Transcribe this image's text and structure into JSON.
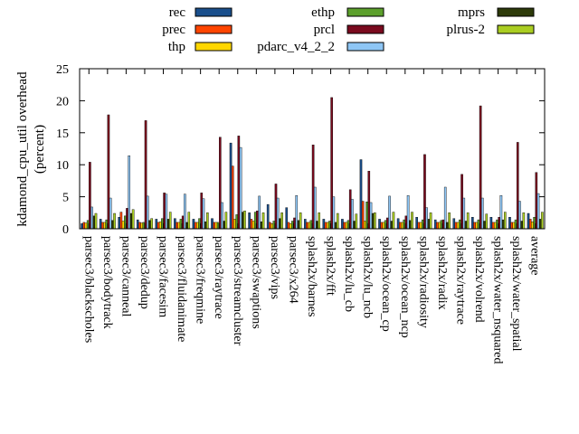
{
  "chart_data": {
    "type": "bar",
    "ylabel": "kdamond_cpu_util overhead",
    "ylabel_unit": "(percent)",
    "ylim": [
      0,
      25
    ],
    "yticks": [
      0,
      5,
      10,
      15,
      20,
      25
    ],
    "categories": [
      "parsec3/blackscholes",
      "parsec3/bodytrack",
      "parsec3/canneal",
      "parsec3/dedup",
      "parsec3/facesim",
      "parsec3/fluidanimate",
      "parsec3/freqmine",
      "parsec3/raytrace",
      "parsec3/streamcluster",
      "parsec3/swaptions",
      "parsec3/vips",
      "parsec3/x264",
      "splash2x/barnes",
      "splash2x/fft",
      "splash2x/lu_cb",
      "splash2x/lu_ncb",
      "splash2x/ocean_cp",
      "splash2x/ocean_ncp",
      "splash2x/radiosity",
      "splash2x/radix",
      "splash2x/raytrace",
      "splash2x/volrend",
      "splash2x/water_nsquared",
      "splash2x/water_spatial",
      "average"
    ],
    "series": [
      {
        "name": "rec",
        "color": "#1a4f8c",
        "values": [
          0.8,
          1.5,
          1.8,
          1.4,
          1.5,
          1.6,
          1.5,
          1.6,
          13.4,
          2.5,
          3.8,
          3.3,
          1.5,
          1.5,
          1.5,
          10.8,
          1.5,
          1.6,
          1.8,
          1.4,
          1.6,
          1.8,
          1.8,
          1.8,
          2.4
        ]
      },
      {
        "name": "prec",
        "color": "#ff4500",
        "values": [
          1.0,
          1.0,
          2.6,
          1.0,
          1.0,
          1.0,
          1.0,
          1.0,
          9.8,
          1.5,
          1.0,
          1.0,
          1.0,
          1.0,
          1.0,
          4.3,
          1.0,
          1.0,
          1.0,
          1.0,
          1.0,
          1.0,
          1.0,
          1.0,
          1.5
        ]
      },
      {
        "name": "thp",
        "color": "#ffd700",
        "values": [
          0.9,
          1.0,
          1.2,
          0.9,
          1.1,
          1.0,
          1.0,
          1.0,
          1.5,
          1.2,
          0.8,
          0.8,
          1.0,
          1.0,
          1.0,
          1.2,
          1.0,
          1.0,
          1.0,
          1.0,
          1.0,
          1.0,
          1.0,
          1.0,
          1.1
        ]
      },
      {
        "name": "ethp",
        "color": "#5ca02c",
        "values": [
          1.3,
          1.4,
          2.0,
          1.0,
          1.6,
          1.5,
          1.6,
          1.0,
          2.2,
          2.6,
          1.2,
          1.2,
          1.3,
          1.2,
          1.3,
          4.2,
          1.3,
          1.4,
          1.4,
          1.3,
          1.4,
          1.4,
          1.4,
          1.4,
          1.8
        ]
      },
      {
        "name": "prcl",
        "color": "#7a0a1e",
        "values": [
          10.4,
          17.8,
          3.2,
          16.9,
          5.6,
          2.0,
          5.6,
          14.3,
          14.5,
          2.8,
          7.0,
          1.7,
          13.1,
          20.5,
          6.1,
          9.0,
          1.7,
          2.0,
          11.6,
          1.4,
          8.5,
          19.2,
          1.8,
          13.5,
          8.8
        ]
      },
      {
        "name": "pdarc_v4_2_2",
        "color": "#8ec6f5",
        "values": [
          3.4,
          4.8,
          11.4,
          5.1,
          5.4,
          5.4,
          4.7,
          4.1,
          12.7,
          5.1,
          4.8,
          5.2,
          6.5,
          5.0,
          4.6,
          4.1,
          5.1,
          5.2,
          3.3,
          6.5,
          4.8,
          4.8,
          5.2,
          4.3,
          5.5
        ]
      },
      {
        "name": "mprs",
        "color": "#2d3a0a",
        "values": [
          2.0,
          1.3,
          2.4,
          1.3,
          1.5,
          1.0,
          1.1,
          1.2,
          2.6,
          1.1,
          1.6,
          1.3,
          1.2,
          1.0,
          1.2,
          2.4,
          1.2,
          1.3,
          1.5,
          1.0,
          1.2,
          1.2,
          1.4,
          1.2,
          1.5
        ]
      },
      {
        "name": "plrus-2",
        "color": "#aacd22",
        "values": [
          2.4,
          2.4,
          3.0,
          1.6,
          2.6,
          2.6,
          2.5,
          2.6,
          2.8,
          2.5,
          2.5,
          2.5,
          2.5,
          2.4,
          2.3,
          2.5,
          2.6,
          2.6,
          2.5,
          2.5,
          2.5,
          2.3,
          2.6,
          2.5,
          2.6
        ]
      }
    ],
    "legend_position": "top",
    "grid": false
  }
}
